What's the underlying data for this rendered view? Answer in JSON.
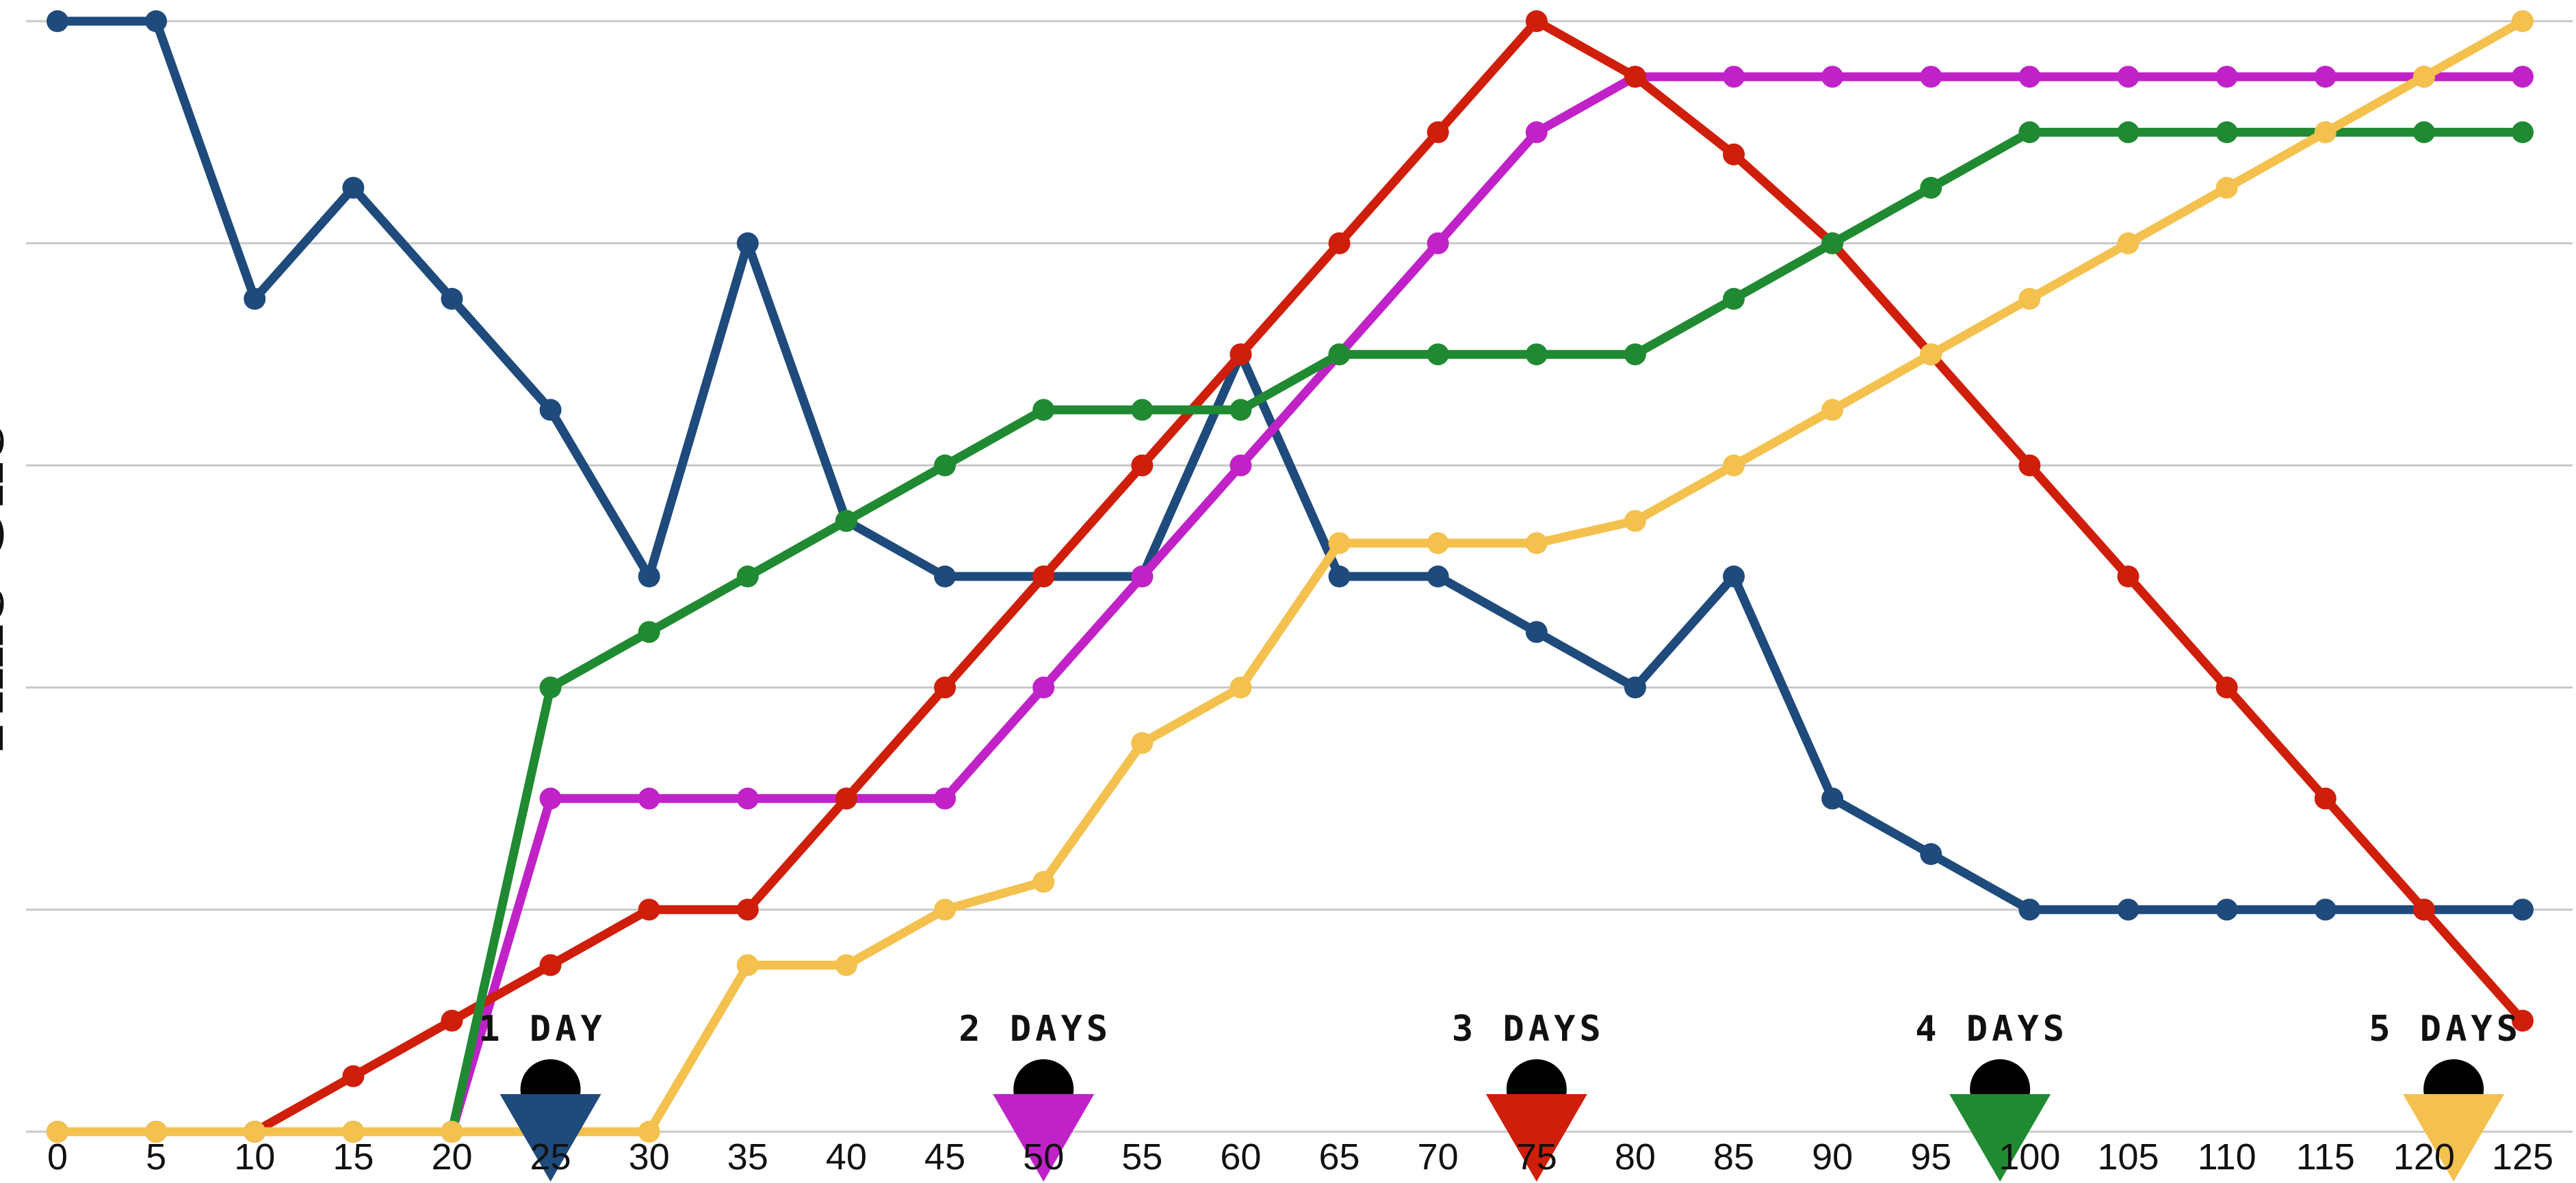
{
  "chart_data": {
    "type": "line",
    "title": "",
    "xlabel": "",
    "ylabel": "Time One",
    "x": [
      0,
      5,
      10,
      15,
      20,
      25,
      30,
      35,
      40,
      45,
      50,
      55,
      60,
      65,
      70,
      75,
      80,
      85,
      90,
      95,
      100,
      105,
      110,
      115,
      120,
      125
    ],
    "xlim": [
      0,
      125
    ],
    "ylim": [
      0,
      20
    ],
    "grid": true,
    "legend": "none",
    "series": [
      {
        "color": "#1e4a7c",
        "values": [
          20,
          20,
          15,
          17,
          15,
          13,
          10,
          16,
          11,
          10,
          10,
          10,
          14,
          10,
          10,
          9,
          8,
          10,
          6,
          5,
          4,
          4,
          4,
          4,
          4,
          4
        ]
      },
      {
        "color": "#c022c8",
        "values": [
          0,
          0,
          0,
          0,
          0,
          6,
          6,
          6,
          6,
          6,
          8,
          10,
          12,
          14,
          16,
          18,
          19,
          19,
          19,
          19,
          19,
          19,
          19,
          19,
          19,
          19
        ]
      },
      {
        "color": "#cf1e0a",
        "values": [
          0,
          0,
          0,
          1,
          2,
          3,
          4,
          4,
          6,
          8,
          10,
          12,
          14,
          16,
          18,
          20,
          19,
          17.6,
          16,
          14,
          12,
          10,
          8,
          6,
          4,
          2
        ]
      },
      {
        "color": "#208a32",
        "values": [
          0,
          0,
          0,
          0,
          0,
          8,
          9,
          10,
          11,
          12,
          13,
          13,
          13,
          14,
          14,
          14,
          14,
          15,
          16,
          17,
          18,
          18,
          18,
          18,
          18,
          18
        ]
      },
      {
        "color": "#f4c14e",
        "values": [
          0,
          0,
          0,
          0,
          0,
          0,
          0,
          3,
          3,
          4,
          4.5,
          7,
          8,
          10.6,
          10.6,
          10.6,
          11,
          12,
          13,
          14,
          15,
          16,
          17,
          18,
          19,
          20
        ]
      }
    ],
    "annotations": [
      {
        "label": "1 DAY",
        "x": 25,
        "color": "#1e4a7c"
      },
      {
        "label": "2 DAYS",
        "x": 50,
        "color": "#c022c8"
      },
      {
        "label": "3 DAYS",
        "x": 75,
        "color": "#cf1e0a"
      },
      {
        "label": "4 DAYS",
        "x": 98.5,
        "color": "#208a32"
      },
      {
        "label": "5 DAYS",
        "x": 121.5,
        "color": "#f4c14e"
      }
    ]
  }
}
